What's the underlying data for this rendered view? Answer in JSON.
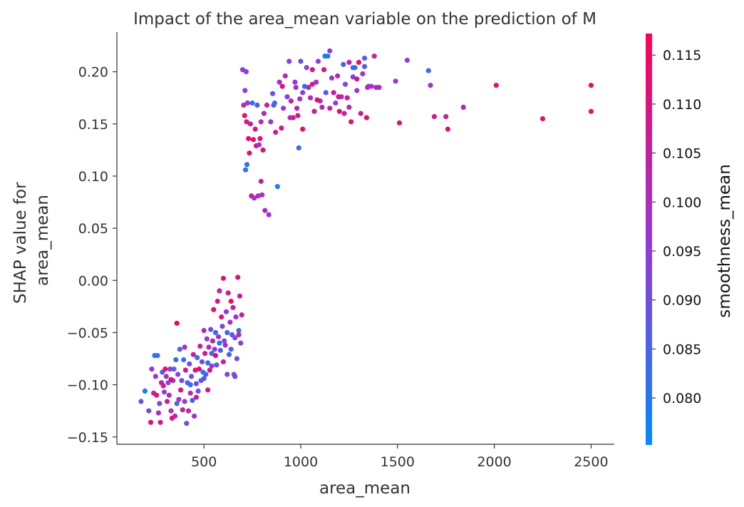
{
  "chart_data": {
    "type": "scatter",
    "title": "Impact of the area_mean variable on the prediction of M",
    "xlabel": "area_mean",
    "ylabel": [
      "SHAP value for",
      "area_mean"
    ],
    "xlim": [
      50,
      2620
    ],
    "ylim": [
      -0.157,
      0.238
    ],
    "xticks": [
      500,
      1000,
      1500,
      2000,
      2500
    ],
    "xtick_labels": [
      "500",
      "1000",
      "1500",
      "2000",
      "2500"
    ],
    "yticks": [
      -0.15,
      -0.1,
      -0.05,
      0.0,
      0.05,
      0.1,
      0.15,
      0.2
    ],
    "ytick_labels": [
      "−0.15",
      "−0.10",
      "−0.05",
      "0.00",
      "0.05",
      "0.10",
      "0.15",
      "0.20"
    ],
    "colorbar": {
      "label": "smoothness_mean",
      "range": [
        0.0752,
        0.1172
      ],
      "ticks": [
        0.08,
        0.085,
        0.09,
        0.095,
        0.1,
        0.105,
        0.11,
        0.115
      ],
      "tick_labels": [
        "0.080",
        "0.085",
        "0.090",
        "0.095",
        "0.100",
        "0.105",
        "0.110",
        "0.115"
      ],
      "colors": [
        "#008bfb",
        "#ff0052"
      ]
    },
    "points": [
      [
        175,
        -0.116,
        0.09
      ],
      [
        195,
        -0.106,
        0.078
      ],
      [
        215,
        -0.125,
        0.092
      ],
      [
        225,
        -0.136,
        0.112
      ],
      [
        230,
        -0.085,
        0.098
      ],
      [
        240,
        -0.108,
        0.105
      ],
      [
        245,
        -0.072,
        0.08
      ],
      [
        250,
        -0.092,
        0.095
      ],
      [
        255,
        -0.11,
        0.11
      ],
      [
        260,
        -0.072,
        0.082
      ],
      [
        265,
        -0.127,
        0.1
      ],
      [
        270,
        -0.118,
        0.092
      ],
      [
        275,
        -0.136,
        0.108
      ],
      [
        280,
        -0.098,
        0.104
      ],
      [
        285,
        -0.088,
        0.088
      ],
      [
        290,
        -0.101,
        0.106
      ],
      [
        295,
        -0.107,
        0.094
      ],
      [
        300,
        -0.085,
        0.112
      ],
      [
        305,
        -0.092,
        0.1
      ],
      [
        310,
        -0.116,
        0.108
      ],
      [
        315,
        -0.098,
        0.09
      ],
      [
        320,
        -0.11,
        0.102
      ],
      [
        325,
        -0.085,
        0.096
      ],
      [
        330,
        -0.125,
        0.1
      ],
      [
        335,
        -0.132,
        0.11
      ],
      [
        340,
        -0.096,
        0.092
      ],
      [
        345,
        -0.085,
        0.087
      ],
      [
        350,
        -0.13,
        0.104
      ],
      [
        355,
        -0.076,
        0.082
      ],
      [
        360,
        -0.041,
        0.114
      ],
      [
        365,
        -0.09,
        0.094
      ],
      [
        370,
        -0.114,
        0.098
      ],
      [
        375,
        -0.066,
        0.085
      ],
      [
        380,
        -0.105,
        0.112
      ],
      [
        385,
        -0.096,
        0.09
      ],
      [
        390,
        -0.124,
        0.104
      ],
      [
        395,
        -0.076,
        0.08
      ],
      [
        400,
        -0.116,
        0.095
      ],
      [
        405,
        -0.086,
        0.108
      ],
      [
        410,
        -0.137,
        0.09
      ],
      [
        415,
        -0.098,
        0.086
      ],
      [
        420,
        -0.125,
        0.104
      ],
      [
        425,
        -0.08,
        0.092
      ],
      [
        430,
        -0.108,
        0.1
      ],
      [
        435,
        -0.092,
        0.088
      ],
      [
        440,
        -0.115,
        0.084
      ],
      [
        445,
        -0.071,
        0.106
      ],
      [
        450,
        -0.13,
        0.098
      ],
      [
        455,
        -0.086,
        0.11
      ],
      [
        460,
        -0.099,
        0.092
      ],
      [
        465,
        -0.074,
        0.082
      ],
      [
        470,
        -0.106,
        0.09
      ],
      [
        475,
        -0.085,
        0.112
      ],
      [
        480,
        -0.063,
        0.104
      ],
      [
        485,
        -0.096,
        0.085
      ],
      [
        490,
        -0.078,
        0.094
      ],
      [
        495,
        -0.088,
        0.079
      ],
      [
        500,
        -0.048,
        0.1
      ],
      [
        505,
        -0.07,
        0.108
      ],
      [
        510,
        -0.09,
        0.086
      ],
      [
        515,
        -0.056,
        0.096
      ],
      [
        520,
        -0.079,
        0.081
      ],
      [
        525,
        -0.064,
        0.102
      ],
      [
        530,
        -0.086,
        0.11
      ],
      [
        535,
        -0.047,
        0.09
      ],
      [
        540,
        -0.07,
        0.084
      ],
      [
        545,
        -0.058,
        0.104
      ],
      [
        550,
        -0.028,
        0.112
      ],
      [
        555,
        -0.066,
        0.094
      ],
      [
        560,
        -0.05,
        0.082
      ],
      [
        565,
        -0.081,
        0.088
      ],
      [
        570,
        -0.02,
        0.108
      ],
      [
        575,
        -0.054,
        0.098
      ],
      [
        580,
        -0.01,
        0.104
      ],
      [
        585,
        -0.067,
        0.086
      ],
      [
        590,
        -0.035,
        0.11
      ],
      [
        595,
        -0.044,
        0.092
      ],
      [
        600,
        0.002,
        0.112
      ],
      [
        605,
        -0.058,
        0.09
      ],
      [
        610,
        -0.062,
        0.102
      ],
      [
        615,
        -0.03,
        0.096
      ],
      [
        620,
        -0.05,
        0.084
      ],
      [
        625,
        -0.012,
        0.108
      ],
      [
        630,
        -0.071,
        0.086
      ],
      [
        635,
        -0.04,
        0.1
      ],
      [
        640,
        -0.02,
        0.114
      ],
      [
        645,
        -0.052,
        0.088
      ],
      [
        650,
        -0.026,
        0.104
      ],
      [
        655,
        -0.09,
        0.084
      ],
      [
        660,
        -0.055,
        0.092
      ],
      [
        665,
        -0.035,
        0.098
      ],
      [
        670,
        -0.075,
        0.09
      ],
      [
        675,
        0.003,
        0.11
      ],
      [
        680,
        -0.048,
        0.082
      ],
      [
        685,
        -0.015,
        0.106
      ],
      [
        690,
        -0.06,
        0.094
      ],
      [
        695,
        -0.033,
        0.104
      ],
      [
        330,
        -0.095,
        0.112
      ],
      [
        360,
        -0.118,
        0.086
      ],
      [
        400,
        -0.064,
        0.098
      ],
      [
        430,
        -0.1,
        0.082
      ],
      [
        460,
        -0.112,
        0.106
      ],
      [
        500,
        -0.094,
        0.088
      ],
      [
        520,
        -0.105,
        0.108
      ],
      [
        540,
        -0.082,
        0.096
      ],
      [
        560,
        -0.072,
        0.112
      ],
      [
        580,
        -0.06,
        0.08
      ],
      [
        600,
        -0.078,
        0.104
      ],
      [
        620,
        -0.09,
        0.092
      ],
      [
        640,
        -0.066,
        0.086
      ],
      [
        660,
        -0.092,
        0.094
      ],
      [
        680,
        -0.052,
        0.102
      ],
      [
        700,
        0.202,
        0.096
      ],
      [
        705,
        0.168,
        0.1
      ],
      [
        710,
        0.158,
        0.112
      ],
      [
        712,
        0.182,
        0.094
      ],
      [
        715,
        0.106,
        0.082
      ],
      [
        718,
        0.2,
        0.094
      ],
      [
        720,
        0.152,
        0.108
      ],
      [
        722,
        0.111,
        0.08
      ],
      [
        725,
        0.17,
        0.098
      ],
      [
        730,
        0.136,
        0.112
      ],
      [
        735,
        0.122,
        0.11
      ],
      [
        740,
        0.15,
        0.104
      ],
      [
        745,
        0.081,
        0.106
      ],
      [
        750,
        0.17,
        0.082
      ],
      [
        755,
        0.135,
        0.112
      ],
      [
        760,
        0.079,
        0.098
      ],
      [
        765,
        0.145,
        0.108
      ],
      [
        770,
        0.129,
        0.11
      ],
      [
        775,
        0.168,
        0.086
      ],
      [
        780,
        0.081,
        0.1
      ],
      [
        785,
        0.13,
        0.094
      ],
      [
        790,
        0.136,
        0.112
      ],
      [
        795,
        0.152,
        0.1
      ],
      [
        800,
        0.082,
        0.098
      ],
      [
        805,
        0.125,
        0.11
      ],
      [
        810,
        0.16,
        0.102
      ],
      [
        815,
        0.067,
        0.1
      ],
      [
        825,
        0.168,
        0.106
      ],
      [
        835,
        0.063,
        0.098
      ],
      [
        845,
        0.152,
        0.096
      ],
      [
        855,
        0.179,
        0.088
      ],
      [
        860,
        0.168,
        0.09
      ],
      [
        870,
        0.142,
        0.106
      ],
      [
        880,
        0.09,
        0.08
      ],
      [
        890,
        0.19,
        0.1
      ],
      [
        900,
        0.146,
        0.11
      ],
      [
        910,
        0.165,
        0.098
      ],
      [
        920,
        0.196,
        0.102
      ],
      [
        930,
        0.176,
        0.092
      ],
      [
        940,
        0.21,
        0.094
      ],
      [
        950,
        0.172,
        0.106
      ],
      [
        960,
        0.156,
        0.112
      ],
      [
        970,
        0.19,
        0.096
      ],
      [
        980,
        0.165,
        0.104
      ],
      [
        985,
        0.158,
        0.11
      ],
      [
        990,
        0.127,
        0.082
      ],
      [
        995,
        0.174,
        0.098
      ],
      [
        1000,
        0.21,
        0.09
      ],
      [
        1010,
        0.145,
        0.112
      ],
      [
        1020,
        0.186,
        0.08
      ],
      [
        1030,
        0.204,
        0.092
      ],
      [
        1040,
        0.185,
        0.104
      ],
      [
        1050,
        0.175,
        0.1
      ],
      [
        1060,
        0.202,
        0.108
      ],
      [
        1070,
        0.162,
        0.106
      ],
      [
        1080,
        0.19,
        0.096
      ],
      [
        1090,
        0.21,
        0.094
      ],
      [
        1100,
        0.172,
        0.1
      ],
      [
        1110,
        0.166,
        0.102
      ],
      [
        1120,
        0.202,
        0.11
      ],
      [
        1130,
        0.18,
        0.088
      ],
      [
        1140,
        0.215,
        0.082
      ],
      [
        1150,
        0.165,
        0.104
      ],
      [
        1160,
        0.194,
        0.098
      ],
      [
        1170,
        0.18,
        0.106
      ],
      [
        1180,
        0.17,
        0.094
      ],
      [
        1190,
        0.196,
        0.102
      ],
      [
        1200,
        0.162,
        0.11
      ],
      [
        1210,
        0.176,
        0.096
      ],
      [
        1220,
        0.207,
        0.086
      ],
      [
        1230,
        0.188,
        0.092
      ],
      [
        1240,
        0.175,
        0.108
      ],
      [
        1250,
        0.166,
        0.1
      ],
      [
        1260,
        0.152,
        0.11
      ],
      [
        1270,
        0.195,
        0.094
      ],
      [
        1280,
        0.204,
        0.082
      ],
      [
        1290,
        0.182,
        0.096
      ],
      [
        1300,
        0.209,
        0.112
      ],
      [
        1310,
        0.16,
        0.106
      ],
      [
        1320,
        0.198,
        0.098
      ],
      [
        1330,
        0.213,
        0.088
      ],
      [
        1340,
        0.156,
        0.112
      ],
      [
        1380,
        0.215,
        0.104
      ],
      [
        1390,
        0.185,
        0.1
      ],
      [
        1490,
        0.191,
        0.096
      ],
      [
        1510,
        0.151,
        0.112
      ],
      [
        1550,
        0.211,
        0.094
      ],
      [
        1660,
        0.201,
        0.084
      ],
      [
        1670,
        0.187,
        0.098
      ],
      [
        1690,
        0.157,
        0.11
      ],
      [
        1750,
        0.157,
        0.106
      ],
      [
        1760,
        0.145,
        0.112
      ],
      [
        1840,
        0.166,
        0.102
      ],
      [
        2010,
        0.187,
        0.112
      ],
      [
        2250,
        0.155,
        0.11
      ],
      [
        2500,
        0.187,
        0.114
      ],
      [
        2500,
        0.162,
        0.11
      ],
      [
        1150,
        0.22,
        0.092
      ],
      [
        1290,
        0.193,
        0.11
      ],
      [
        1345,
        0.185,
        0.102
      ],
      [
        1365,
        0.186,
        0.096
      ],
      [
        1405,
        0.185,
        0.1
      ],
      [
        1195,
        0.176,
        0.108
      ],
      [
        1225,
        0.16,
        0.104
      ],
      [
        1125,
        0.215,
        0.08
      ],
      [
        1085,
        0.173,
        0.112
      ],
      [
        975,
        0.185,
        0.098
      ],
      [
        945,
        0.156,
        0.1
      ],
      [
        905,
        0.186,
        0.11
      ],
      [
        865,
        0.17,
        0.082
      ],
      [
        795,
        0.095,
        0.104
      ],
      [
        1010,
        0.18,
        0.092
      ],
      [
        1060,
        0.188,
        0.108
      ],
      [
        1250,
        0.209,
        0.104
      ],
      [
        1330,
        0.205,
        0.088
      ],
      [
        1270,
        0.204,
        0.08
      ],
      [
        1350,
        0.186,
        0.098
      ]
    ]
  }
}
